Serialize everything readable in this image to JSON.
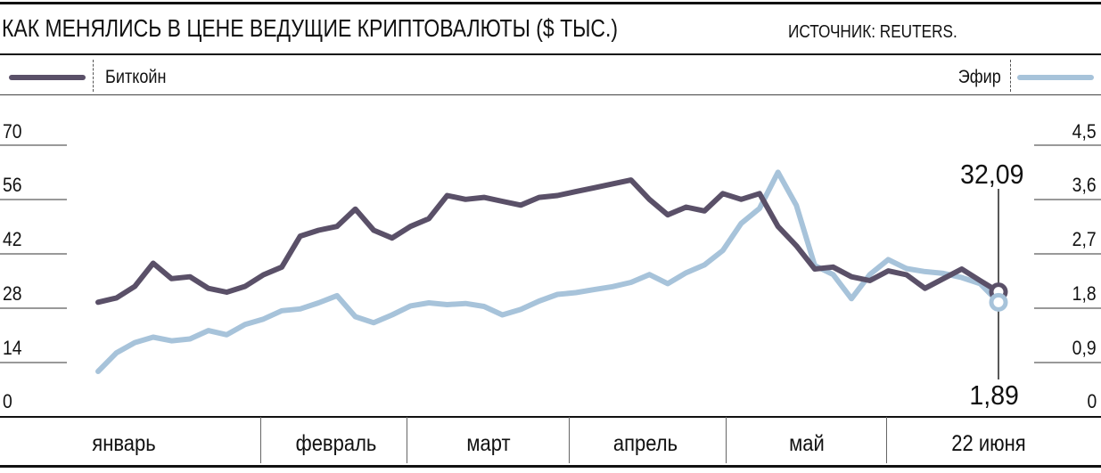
{
  "header": {
    "title": "КАК МЕНЯЛИСЬ В ЦЕНЕ ВЕДУЩИЕ КРИПТОВАЛЮТЫ ($ ТЫС.)",
    "source": "ИСТОЧНИК: REUTERS."
  },
  "legend": {
    "bitcoin": "Биткойн",
    "ether": "Эфир"
  },
  "axes": {
    "left_ticks": [
      "70",
      "56",
      "42",
      "28",
      "14",
      "0"
    ],
    "right_ticks": [
      "4,5",
      "3,6",
      "2,7",
      "1,8",
      "0,9",
      "0"
    ],
    "months": [
      "январь",
      "февраль",
      "март",
      "апрель",
      "май",
      "22 июня"
    ]
  },
  "callouts": {
    "bitcoin_last": "32,09",
    "ether_last": "1,89"
  },
  "colors": {
    "bitcoin": "#5a5068",
    "ether": "#a7c3da",
    "text": "#111111",
    "rule": "#111111"
  },
  "chart_data": {
    "type": "line",
    "title": "КАК МЕНЯЛИСЬ В ЦЕНЕ ВЕДУЩИЕ КРИПТОВАЛЮТЫ ($ ТЫС.)",
    "x": [
      "01.01",
      "05.01",
      "08.01",
      "12.01",
      "15.01",
      "19.01",
      "22.01",
      "26.01",
      "29.01",
      "02.02",
      "05.02",
      "09.02",
      "12.02",
      "16.02",
      "19.02",
      "23.02",
      "26.02",
      "02.03",
      "05.03",
      "09.03",
      "12.03",
      "16.03",
      "19.03",
      "23.03",
      "26.03",
      "30.03",
      "02.04",
      "06.04",
      "09.04",
      "13.04",
      "16.04",
      "20.04",
      "23.04",
      "27.04",
      "30.04",
      "04.05",
      "07.05",
      "11.05",
      "14.05",
      "18.05",
      "21.05",
      "25.05",
      "28.05",
      "01.06",
      "04.06",
      "08.06",
      "11.06",
      "15.06",
      "18.06",
      "22.06"
    ],
    "x_labels": [
      "январь",
      "февраль",
      "март",
      "апрель",
      "май",
      "22 июня"
    ],
    "series": [
      {
        "name": "Биткойн",
        "axis": "left",
        "values": [
          29.4,
          30.5,
          33.5,
          39.5,
          35.5,
          36.0,
          33.0,
          32.0,
          33.5,
          36.5,
          38.5,
          46.5,
          48.0,
          49.0,
          53.5,
          48.0,
          46.0,
          49.0,
          51.0,
          57.0,
          56.0,
          56.5,
          55.5,
          54.5,
          56.5,
          57.0,
          58.0,
          59.0,
          60.0,
          61.0,
          56.0,
          52.0,
          54.0,
          53.0,
          57.5,
          56.0,
          57.5,
          49.0,
          44.0,
          38.0,
          38.5,
          36.0,
          35.0,
          37.5,
          36.5,
          33.0,
          35.5,
          38.0,
          35.0,
          32.09
        ]
      },
      {
        "name": "Эфир",
        "axis": "right",
        "values": [
          0.74,
          1.05,
          1.22,
          1.31,
          1.25,
          1.28,
          1.42,
          1.35,
          1.52,
          1.61,
          1.75,
          1.78,
          1.88,
          2.0,
          1.65,
          1.55,
          1.68,
          1.83,
          1.88,
          1.85,
          1.87,
          1.82,
          1.68,
          1.77,
          1.91,
          2.02,
          2.05,
          2.1,
          2.15,
          2.22,
          2.35,
          2.2,
          2.38,
          2.51,
          2.75,
          3.2,
          3.45,
          4.05,
          3.5,
          2.5,
          2.35,
          1.95,
          2.35,
          2.6,
          2.45,
          2.4,
          2.37,
          2.3,
          2.2,
          1.89
        ]
      }
    ],
    "ylim_left": [
      0,
      70
    ],
    "ylim_right": [
      0,
      4.5
    ],
    "grid": "short tick lines at the outer edges only",
    "legend_position": "top"
  }
}
